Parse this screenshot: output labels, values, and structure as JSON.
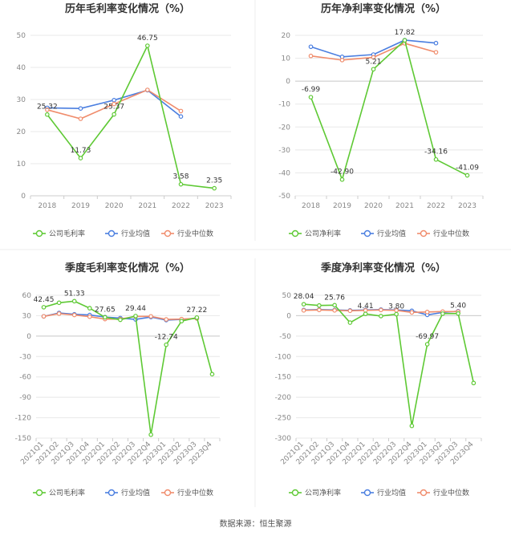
{
  "source": "数据来源：恒生聚源",
  "legend_items": [
    "公司毛利率",
    "行业均值",
    "行业中位数"
  ],
  "colors": {
    "company": "#5ec934",
    "mean": "#4a7ee0",
    "median": "#f08c6c"
  },
  "chart_data": [
    {
      "type": "line",
      "title": "历年毛利率变化情况（%）",
      "legend": [
        "公司毛利率",
        "行业均值",
        "行业中位数"
      ],
      "categories": [
        "2018",
        "2019",
        "2020",
        "2021",
        "2022",
        "2023"
      ],
      "ylim": [
        0,
        50
      ],
      "yticks": [
        0,
        10,
        20,
        30,
        40,
        50
      ],
      "series": [
        {
          "name": "公司毛利率",
          "values": [
            25.32,
            11.73,
            25.37,
            46.75,
            3.58,
            2.35
          ],
          "labels": [
            "25.32",
            "11.73",
            "25.37",
            "46.75",
            "3.58",
            "2.35"
          ]
        },
        {
          "name": "行业均值",
          "values": [
            27.4,
            27.2,
            29.8,
            32.9,
            24.7,
            null
          ]
        },
        {
          "name": "行业中位数",
          "values": [
            26.8,
            24.0,
            28.6,
            33.0,
            26.4,
            null
          ]
        }
      ]
    },
    {
      "type": "line",
      "title": "历年净利率变化情况（%）",
      "legend": [
        "公司净利率",
        "行业均值",
        "行业中位数"
      ],
      "categories": [
        "2018",
        "2019",
        "2020",
        "2021",
        "2022",
        "2023"
      ],
      "ylim": [
        -50,
        20
      ],
      "yticks": [
        -50,
        -40,
        -30,
        -20,
        -10,
        0,
        10,
        20
      ],
      "series": [
        {
          "name": "公司净利率",
          "values": [
            -6.99,
            -42.9,
            5.21,
            17.82,
            -34.16,
            -41.09
          ],
          "labels": [
            "-6.99",
            "-42.90",
            "5.21",
            "17.82",
            "-34.16",
            "-41.09"
          ]
        },
        {
          "name": "行业均值",
          "values": [
            15.0,
            10.6,
            11.6,
            17.9,
            16.6,
            null
          ]
        },
        {
          "name": "行业中位数",
          "values": [
            11.0,
            9.2,
            10.4,
            16.5,
            12.6,
            null
          ]
        }
      ]
    },
    {
      "type": "line",
      "title": "季度毛利率变化情况（%）",
      "legend": [
        "公司毛利率",
        "行业均值",
        "行业中位数"
      ],
      "categories": [
        "2021Q1",
        "2021Q2",
        "2021Q3",
        "2021Q4",
        "2022Q1",
        "2022Q2",
        "2022Q3",
        "2022Q4",
        "2023Q1",
        "2023Q2",
        "2023Q3",
        "2023Q4"
      ],
      "ylim": [
        -150,
        60
      ],
      "yticks": [
        -150,
        -120,
        -90,
        -60,
        -30,
        0,
        30,
        60
      ],
      "series": [
        {
          "name": "公司毛利率",
          "values": [
            42.45,
            49.0,
            51.33,
            41.0,
            27.65,
            24.0,
            29.44,
            -145.0,
            -12.74,
            22.0,
            27.22,
            -56.0
          ],
          "labels": [
            "42.45",
            "",
            "51.33",
            "",
            "27.65",
            "",
            "29.44",
            "",
            "-12.74",
            "",
            "27.22",
            ""
          ]
        },
        {
          "name": "行业均值",
          "values": [
            29.0,
            34.0,
            32.0,
            31.0,
            28.0,
            26.5,
            24.5,
            28.0,
            23.5,
            24.5,
            26.0,
            null
          ]
        },
        {
          "name": "行业中位数",
          "values": [
            29.0,
            33.0,
            31.0,
            28.5,
            25.0,
            25.0,
            29.0,
            29.0,
            24.5,
            25.0,
            26.0,
            null
          ]
        }
      ]
    },
    {
      "type": "line",
      "title": "季度净利率变化情况（%）",
      "legend": [
        "公司净利率",
        "行业均值",
        "行业中位数"
      ],
      "categories": [
        "2021Q1",
        "2021Q2",
        "2021Q3",
        "2021Q4",
        "2022Q1",
        "2022Q2",
        "2022Q3",
        "2022Q4",
        "2023Q1",
        "2023Q2",
        "2023Q3",
        "2023Q4"
      ],
      "ylim": [
        -300,
        50
      ],
      "yticks": [
        -300,
        -250,
        -200,
        -150,
        -100,
        -50,
        0,
        50
      ],
      "series": [
        {
          "name": "公司净利率",
          "values": [
            28.04,
            25.0,
            25.76,
            -17.0,
            4.41,
            -1.0,
            3.8,
            -270.0,
            -69.97,
            5.0,
            5.4,
            -165.0
          ],
          "labels": [
            "28.04",
            "",
            "25.76",
            "",
            "4.41",
            "",
            "3.80",
            "",
            "-69.97",
            "",
            "5.40",
            ""
          ]
        },
        {
          "name": "行业均值",
          "values": [
            14.0,
            15.0,
            14.0,
            13.0,
            14.0,
            15.0,
            14.0,
            12.0,
            2.0,
            8.0,
            11.0,
            null
          ]
        },
        {
          "name": "行业中位数",
          "values": [
            13.0,
            14.0,
            13.0,
            12.0,
            13.0,
            14.0,
            13.0,
            8.0,
            9.0,
            10.0,
            10.0,
            null
          ]
        }
      ]
    }
  ]
}
